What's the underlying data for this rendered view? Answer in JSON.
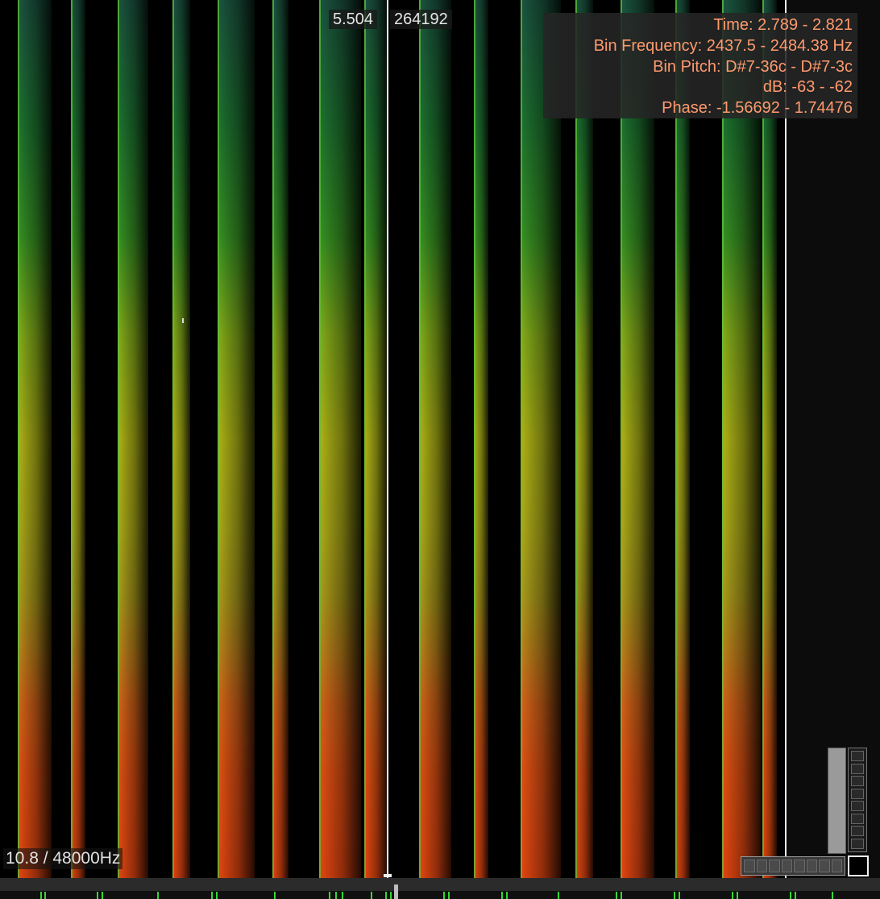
{
  "header": {
    "position_time": "5.504",
    "position_sample": "264192"
  },
  "info_panel": {
    "time": "Time: 2.789 - 2.821",
    "bin_frequency": "Bin Frequency: 2437.5 - 2484.38 Hz",
    "bin_pitch": "Bin Pitch: D#7-36c - D#7-3c",
    "db": "dB: -63 - -62",
    "phase": "Phase: -1.56692 - 1.74476"
  },
  "footer": {
    "sample_rate": "10.8 / 48000Hz"
  },
  "colors": {
    "background": "#000000",
    "info_text": "#ff9a6e",
    "spectrum_low": "#1d5a45",
    "spectrum_mid": "#b9be17",
    "spectrum_high": "#f24a12",
    "timeline_ticks": "#35d735"
  },
  "icons": {
    "fullscreen": "fullscreen-icon",
    "zoom": "zoom-strip-icon"
  }
}
